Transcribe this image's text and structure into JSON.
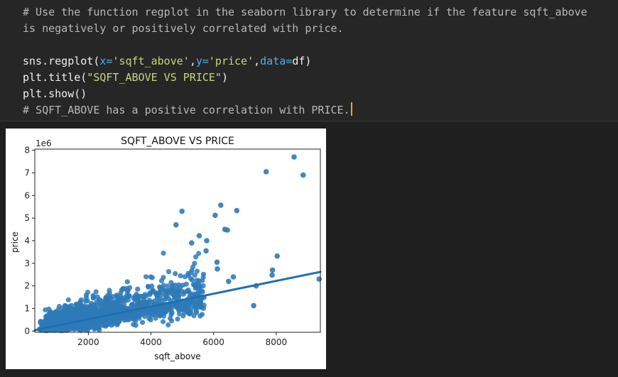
{
  "code": {
    "comment_line_1": "# Use the function regplot in the seaborn library to determine if the feature sqft_above",
    "comment_line_2": "is negatively or positively correlated with price.",
    "regplot_prefix": "sns.regplot(",
    "arg_x_name": "x=",
    "arg_x_value": "'sqft_above'",
    "comma1": ",",
    "arg_y_name": "y=",
    "arg_y_value": "'price'",
    "comma2": ",",
    "arg_data_name": "data=",
    "arg_data_value": "df)",
    "title_prefix": "plt.title(",
    "title_arg": "\"SQFT_ABOVE VS PRICE\"",
    "title_suffix": ")",
    "show_line": "plt.show()",
    "result_comment": "# SQFT_ABOVE has a positive correlation with PRICE."
  },
  "colors": {
    "point": "#2e7ab8",
    "line": "#1f6fb0"
  },
  "chart_data": {
    "type": "scatter",
    "title": "SQFT_ABOVE VS PRICE",
    "xlabel": "sqft_above",
    "ylabel": "price",
    "y_offset_label": "1e6",
    "xlim": [
      290,
      9410
    ],
    "ylim": [
      -0.05,
      8.05
    ],
    "x_ticks": [
      2000,
      4000,
      6000,
      8000
    ],
    "y_ticks": [
      0,
      1,
      2,
      3,
      4,
      5,
      6,
      7,
      8
    ],
    "grid": false,
    "regression_line": {
      "x": [
        290,
        9410
      ],
      "y": [
        0.04,
        2.62
      ]
    },
    "outlier_points": [
      {
        "x": 8570,
        "y": 7.7
      },
      {
        "x": 7680,
        "y": 7.05
      },
      {
        "x": 8860,
        "y": 6.9
      },
      {
        "x": 6230,
        "y": 5.57
      },
      {
        "x": 6740,
        "y": 5.33
      },
      {
        "x": 6050,
        "y": 5.12
      },
      {
        "x": 4990,
        "y": 5.3
      },
      {
        "x": 6360,
        "y": 4.5
      },
      {
        "x": 6440,
        "y": 4.47
      },
      {
        "x": 4800,
        "y": 4.7
      },
      {
        "x": 5540,
        "y": 4.22
      },
      {
        "x": 5780,
        "y": 4.0
      },
      {
        "x": 8030,
        "y": 3.32
      },
      {
        "x": 7880,
        "y": 2.7
      },
      {
        "x": 7870,
        "y": 2.48
      },
      {
        "x": 9370,
        "y": 2.3
      },
      {
        "x": 7360,
        "y": 2.0
      },
      {
        "x": 7280,
        "y": 1.13
      },
      {
        "x": 6630,
        "y": 2.4
      },
      {
        "x": 6110,
        "y": 3.05
      },
      {
        "x": 5760,
        "y": 3.55
      },
      {
        "x": 5300,
        "y": 3.9
      },
      {
        "x": 6480,
        "y": 2.2
      },
      {
        "x": 6120,
        "y": 2.75
      }
    ],
    "dense_cluster_note": "Dense cluster of ~21k points; generated procedurally along trend"
  }
}
